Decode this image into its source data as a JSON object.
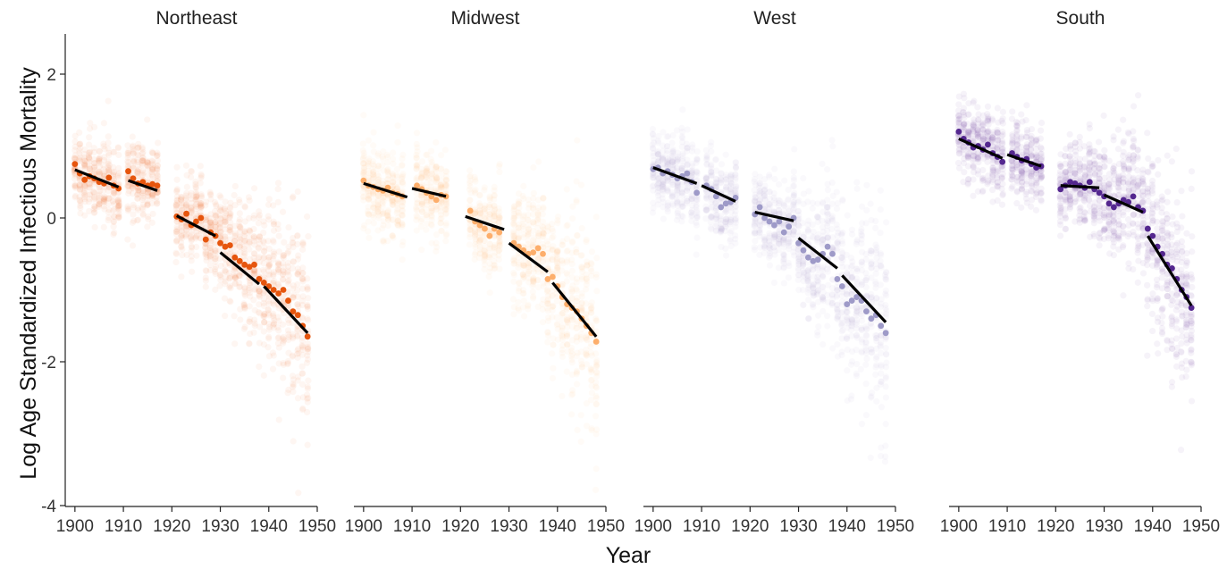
{
  "chart_data": {
    "type": "scatter",
    "xlabel": "Year",
    "ylabel": "Log Age Standardized Infectious Mortality",
    "xlim": [
      1898,
      1950
    ],
    "ylim": [
      -4.05,
      2.55
    ],
    "x_ticks": [
      1900,
      1910,
      1920,
      1930,
      1940,
      1950
    ],
    "y_ticks": [
      2,
      0,
      -2,
      -4
    ],
    "grid": false,
    "legend": "none",
    "panels": [
      {
        "title": "Northeast",
        "color": "#E6550D",
        "points": [
          [
            1900,
            0.75
          ],
          [
            1901,
            0.62
          ],
          [
            1902,
            0.53
          ],
          [
            1903,
            0.58
          ],
          [
            1904,
            0.55
          ],
          [
            1905,
            0.5
          ],
          [
            1906,
            0.48
          ],
          [
            1907,
            0.56
          ],
          [
            1908,
            0.45
          ],
          [
            1909,
            0.41
          ],
          [
            1911,
            0.65
          ],
          [
            1912,
            0.55
          ],
          [
            1913,
            0.48
          ],
          [
            1914,
            0.5
          ],
          [
            1915,
            0.45
          ],
          [
            1916,
            0.47
          ],
          [
            1917,
            0.45
          ],
          [
            1921,
            0.02
          ],
          [
            1922,
            -0.02
          ],
          [
            1923,
            0.06
          ],
          [
            1924,
            -0.1
          ],
          [
            1925,
            -0.05
          ],
          [
            1926,
            0.0
          ],
          [
            1927,
            -0.3
          ],
          [
            1928,
            -0.2
          ],
          [
            1929,
            -0.25
          ],
          [
            1930,
            -0.35
          ],
          [
            1931,
            -0.4
          ],
          [
            1932,
            -0.38
          ],
          [
            1933,
            -0.55
          ],
          [
            1934,
            -0.6
          ],
          [
            1935,
            -0.65
          ],
          [
            1936,
            -0.68
          ],
          [
            1937,
            -0.65
          ],
          [
            1938,
            -0.85
          ],
          [
            1939,
            -0.9
          ],
          [
            1940,
            -0.95
          ],
          [
            1941,
            -1.0
          ],
          [
            1942,
            -1.05
          ],
          [
            1943,
            -1.0
          ],
          [
            1944,
            -1.15
          ],
          [
            1945,
            -1.3
          ],
          [
            1946,
            -1.35
          ],
          [
            1947,
            -1.5
          ],
          [
            1948,
            -1.65
          ]
        ],
        "trend_segments": [
          [
            [
              1900,
              0.67
            ],
            [
              1909,
              0.43
            ]
          ],
          [
            [
              1911,
              0.52
            ],
            [
              1917,
              0.38
            ]
          ],
          [
            [
              1921,
              0.03
            ],
            [
              1929,
              -0.25
            ]
          ],
          [
            [
              1930,
              -0.48
            ],
            [
              1938,
              -0.92
            ]
          ],
          [
            [
              1939,
              -0.95
            ],
            [
              1948,
              -1.6
            ]
          ]
        ]
      },
      {
        "title": "Midwest",
        "color": "#FDAE6B",
        "points": [
          [
            1900,
            0.52
          ],
          [
            1901,
            0.45
          ],
          [
            1902,
            0.43
          ],
          [
            1903,
            0.4
          ],
          [
            1904,
            0.38
          ],
          [
            1905,
            0.42
          ],
          [
            1906,
            0.35
          ],
          [
            1907,
            0.33
          ],
          [
            1908,
            0.3
          ],
          [
            1911,
            0.45
          ],
          [
            1912,
            0.4
          ],
          [
            1913,
            0.35
          ],
          [
            1914,
            0.3
          ],
          [
            1915,
            0.25
          ],
          [
            1916,
            0.32
          ],
          [
            1917,
            0.3
          ],
          [
            1922,
            0.1
          ],
          [
            1923,
            -0.05
          ],
          [
            1924,
            -0.1
          ],
          [
            1925,
            -0.15
          ],
          [
            1926,
            -0.25
          ],
          [
            1927,
            -0.15
          ],
          [
            1928,
            -0.2
          ],
          [
            1931,
            -0.35
          ],
          [
            1932,
            -0.4
          ],
          [
            1933,
            -0.45
          ],
          [
            1934,
            -0.5
          ],
          [
            1935,
            -0.48
          ],
          [
            1936,
            -0.42
          ],
          [
            1937,
            -0.5
          ],
          [
            1938,
            -0.85
          ],
          [
            1939,
            -0.82
          ],
          [
            1940,
            -0.95
          ],
          [
            1941,
            -1.1
          ],
          [
            1942,
            -1.2
          ],
          [
            1943,
            -1.25
          ],
          [
            1944,
            -1.3
          ],
          [
            1945,
            -1.4
          ],
          [
            1946,
            -1.5
          ],
          [
            1947,
            -1.6
          ],
          [
            1948,
            -1.72
          ]
        ],
        "trend_segments": [
          [
            [
              1900,
              0.48
            ],
            [
              1909,
              0.29
            ]
          ],
          [
            [
              1910,
              0.41
            ],
            [
              1917,
              0.3
            ]
          ],
          [
            [
              1921,
              0.02
            ],
            [
              1929,
              -0.16
            ]
          ],
          [
            [
              1930,
              -0.35
            ],
            [
              1938,
              -0.75
            ]
          ],
          [
            [
              1939,
              -0.9
            ],
            [
              1948,
              -1.65
            ]
          ]
        ]
      },
      {
        "title": "West",
        "color": "#9E9AC8",
        "points": [
          [
            1900,
            0.68
          ],
          [
            1901,
            0.7
          ],
          [
            1902,
            0.62
          ],
          [
            1903,
            0.65
          ],
          [
            1904,
            0.6
          ],
          [
            1905,
            0.55
          ],
          [
            1906,
            0.58
          ],
          [
            1907,
            0.62
          ],
          [
            1908,
            0.5
          ],
          [
            1909,
            0.35
          ],
          [
            1911,
            0.45
          ],
          [
            1912,
            0.4
          ],
          [
            1913,
            0.3
          ],
          [
            1914,
            0.15
          ],
          [
            1915,
            0.2
          ],
          [
            1916,
            0.22
          ],
          [
            1917,
            0.28
          ],
          [
            1921,
            0.05
          ],
          [
            1922,
            0.15
          ],
          [
            1923,
            0.0
          ],
          [
            1924,
            -0.05
          ],
          [
            1925,
            -0.1
          ],
          [
            1926,
            -0.05
          ],
          [
            1927,
            -0.2
          ],
          [
            1928,
            -0.12
          ],
          [
            1929,
            0.0
          ],
          [
            1930,
            -0.35
          ],
          [
            1931,
            -0.45
          ],
          [
            1932,
            -0.55
          ],
          [
            1933,
            -0.6
          ],
          [
            1934,
            -0.58
          ],
          [
            1935,
            -0.5
          ],
          [
            1936,
            -0.4
          ],
          [
            1937,
            -0.5
          ],
          [
            1938,
            -0.85
          ],
          [
            1939,
            -0.95
          ],
          [
            1940,
            -1.2
          ],
          [
            1941,
            -1.15
          ],
          [
            1942,
            -1.1
          ],
          [
            1943,
            -1.15
          ],
          [
            1944,
            -1.3
          ],
          [
            1945,
            -1.4
          ],
          [
            1946,
            -1.35
          ],
          [
            1947,
            -1.5
          ],
          [
            1948,
            -1.6
          ]
        ],
        "trend_segments": [
          [
            [
              1900,
              0.7
            ],
            [
              1909,
              0.48
            ]
          ],
          [
            [
              1910,
              0.45
            ],
            [
              1917,
              0.23
            ]
          ],
          [
            [
              1921,
              0.08
            ],
            [
              1929,
              -0.04
            ]
          ],
          [
            [
              1930,
              -0.28
            ],
            [
              1938,
              -0.7
            ]
          ],
          [
            [
              1939,
              -0.8
            ],
            [
              1948,
              -1.45
            ]
          ]
        ]
      },
      {
        "title": "South",
        "color": "#54278F",
        "points": [
          [
            1900,
            1.2
          ],
          [
            1901,
            1.1
          ],
          [
            1902,
            1.05
          ],
          [
            1903,
            0.98
          ],
          [
            1904,
            1.0
          ],
          [
            1905,
            0.95
          ],
          [
            1906,
            1.02
          ],
          [
            1907,
            0.9
          ],
          [
            1908,
            0.85
          ],
          [
            1909,
            0.78
          ],
          [
            1911,
            0.9
          ],
          [
            1912,
            0.85
          ],
          [
            1913,
            0.8
          ],
          [
            1914,
            0.82
          ],
          [
            1915,
            0.75
          ],
          [
            1916,
            0.7
          ],
          [
            1917,
            0.72
          ],
          [
            1921,
            0.4
          ],
          [
            1922,
            0.45
          ],
          [
            1923,
            0.5
          ],
          [
            1924,
            0.48
          ],
          [
            1925,
            0.45
          ],
          [
            1926,
            0.42
          ],
          [
            1927,
            0.5
          ],
          [
            1928,
            0.4
          ],
          [
            1929,
            0.35
          ],
          [
            1930,
            0.3
          ],
          [
            1931,
            0.2
          ],
          [
            1932,
            0.15
          ],
          [
            1933,
            0.2
          ],
          [
            1934,
            0.25
          ],
          [
            1935,
            0.22
          ],
          [
            1936,
            0.3
          ],
          [
            1937,
            0.15
          ],
          [
            1938,
            0.1
          ],
          [
            1939,
            -0.15
          ],
          [
            1940,
            -0.25
          ],
          [
            1941,
            -0.4
          ],
          [
            1942,
            -0.5
          ],
          [
            1943,
            -0.65
          ],
          [
            1944,
            -0.7
          ],
          [
            1945,
            -0.85
          ],
          [
            1946,
            -1.0
          ],
          [
            1947,
            -1.1
          ],
          [
            1948,
            -1.25
          ]
        ],
        "trend_segments": [
          [
            [
              1900,
              1.1
            ],
            [
              1909,
              0.83
            ]
          ],
          [
            [
              1910,
              0.88
            ],
            [
              1917,
              0.72
            ]
          ],
          [
            [
              1921,
              0.45
            ],
            [
              1929,
              0.42
            ]
          ],
          [
            [
              1930,
              0.32
            ],
            [
              1938,
              0.08
            ]
          ],
          [
            [
              1939,
              -0.25
            ],
            [
              1948,
              -1.22
            ]
          ]
        ]
      }
    ]
  }
}
